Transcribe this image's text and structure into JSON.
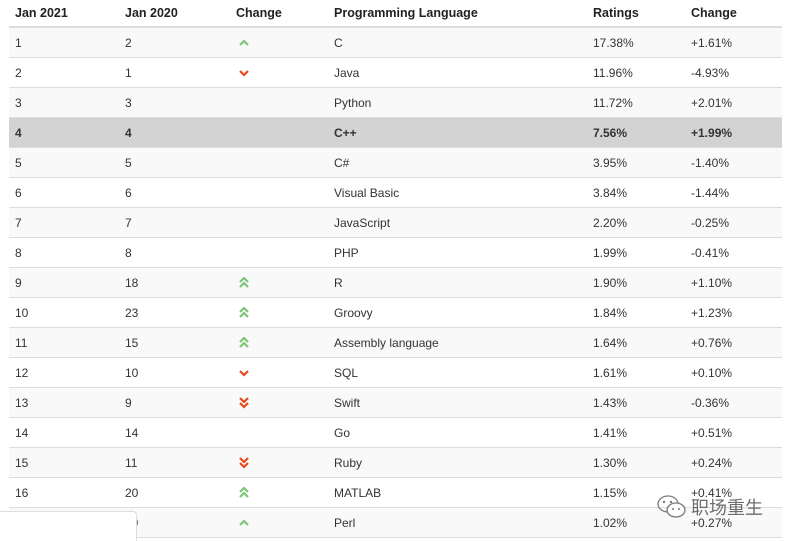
{
  "headers": [
    "Jan 2021",
    "Jan 2020",
    "Change",
    "Programming Language",
    "Ratings",
    "Change"
  ],
  "highlight_row": 3,
  "colors": {
    "up": "#7cc576",
    "down": "#e8481c",
    "highlight": "#d3d3d3"
  },
  "rows": [
    {
      "jan2021": "1",
      "jan2020": "2",
      "change_icon": "chevron-up",
      "language": "C",
      "rating": "17.38%",
      "change": "+1.61%"
    },
    {
      "jan2021": "2",
      "jan2020": "1",
      "change_icon": "chevron-down",
      "language": "Java",
      "rating": "11.96%",
      "change": "-4.93%"
    },
    {
      "jan2021": "3",
      "jan2020": "3",
      "change_icon": "none",
      "language": "Python",
      "rating": "11.72%",
      "change": "+2.01%"
    },
    {
      "jan2021": "4",
      "jan2020": "4",
      "change_icon": "none",
      "language": "C++",
      "rating": "7.56%",
      "change": "+1.99%"
    },
    {
      "jan2021": "5",
      "jan2020": "5",
      "change_icon": "none",
      "language": "C#",
      "rating": "3.95%",
      "change": "-1.40%"
    },
    {
      "jan2021": "6",
      "jan2020": "6",
      "change_icon": "none",
      "language": "Visual Basic",
      "rating": "3.84%",
      "change": "-1.44%"
    },
    {
      "jan2021": "7",
      "jan2020": "7",
      "change_icon": "none",
      "language": "JavaScript",
      "rating": "2.20%",
      "change": "-0.25%"
    },
    {
      "jan2021": "8",
      "jan2020": "8",
      "change_icon": "none",
      "language": "PHP",
      "rating": "1.99%",
      "change": "-0.41%"
    },
    {
      "jan2021": "9",
      "jan2020": "18",
      "change_icon": "double-chevron-up",
      "language": "R",
      "rating": "1.90%",
      "change": "+1.10%"
    },
    {
      "jan2021": "10",
      "jan2020": "23",
      "change_icon": "double-chevron-up",
      "language": "Groovy",
      "rating": "1.84%",
      "change": "+1.23%"
    },
    {
      "jan2021": "11",
      "jan2020": "15",
      "change_icon": "double-chevron-up",
      "language": "Assembly language",
      "rating": "1.64%",
      "change": "+0.76%"
    },
    {
      "jan2021": "12",
      "jan2020": "10",
      "change_icon": "chevron-down",
      "language": "SQL",
      "rating": "1.61%",
      "change": "+0.10%"
    },
    {
      "jan2021": "13",
      "jan2020": "9",
      "change_icon": "double-chevron-down",
      "language": "Swift",
      "rating": "1.43%",
      "change": "-0.36%"
    },
    {
      "jan2021": "14",
      "jan2020": "14",
      "change_icon": "none",
      "language": "Go",
      "rating": "1.41%",
      "change": "+0.51%"
    },
    {
      "jan2021": "15",
      "jan2020": "11",
      "change_icon": "double-chevron-down",
      "language": "Ruby",
      "rating": "1.30%",
      "change": "+0.24%"
    },
    {
      "jan2021": "16",
      "jan2020": "20",
      "change_icon": "double-chevron-up",
      "language": "MATLAB",
      "rating": "1.15%",
      "change": "+0.41%"
    },
    {
      "jan2021": "17",
      "jan2020": "19",
      "change_icon": "chevron-up",
      "language": "Perl",
      "rating": "1.02%",
      "change": "+0.27%"
    }
  ],
  "watermark": {
    "text": "职场重生",
    "icon": "wechat-icon"
  }
}
